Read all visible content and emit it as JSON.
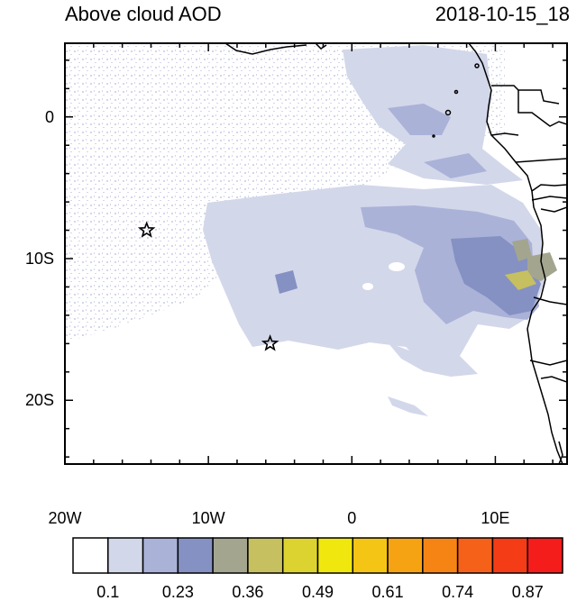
{
  "header": {
    "title": "Above cloud AOD",
    "datetime": "2018-10-15_18"
  },
  "axes": {
    "lon_ticks": [
      {
        "label": "20W",
        "value": -20
      },
      {
        "label": "10W",
        "value": -10
      },
      {
        "label": "0",
        "value": 0
      },
      {
        "label": "10E",
        "value": 10
      }
    ],
    "lat_ticks": [
      {
        "label": "0",
        "value": 0
      },
      {
        "label": "10S",
        "value": -10
      },
      {
        "label": "20S",
        "value": -20
      }
    ],
    "lon_range": [
      -20,
      15
    ],
    "lat_range": [
      -24.5,
      5.2
    ]
  },
  "markers": [
    {
      "name": "star-marker",
      "lon": -14.3,
      "lat": -8.0
    },
    {
      "name": "star-marker",
      "lon": -5.7,
      "lat": -16.0
    }
  ],
  "colorbar": {
    "labels": [
      "0.1",
      "0.23",
      "0.36",
      "0.49",
      "0.61",
      "0.74",
      "0.87"
    ],
    "colors": [
      "#ffffff",
      "#d3d7ea",
      "#aab2d8",
      "#8591c2",
      "#a3a58f",
      "#c6c060",
      "#dcd331",
      "#f0e70f",
      "#f4c514",
      "#f6a313",
      "#f68414",
      "#f6611a",
      "#f43c17",
      "#f51c1c"
    ]
  }
}
